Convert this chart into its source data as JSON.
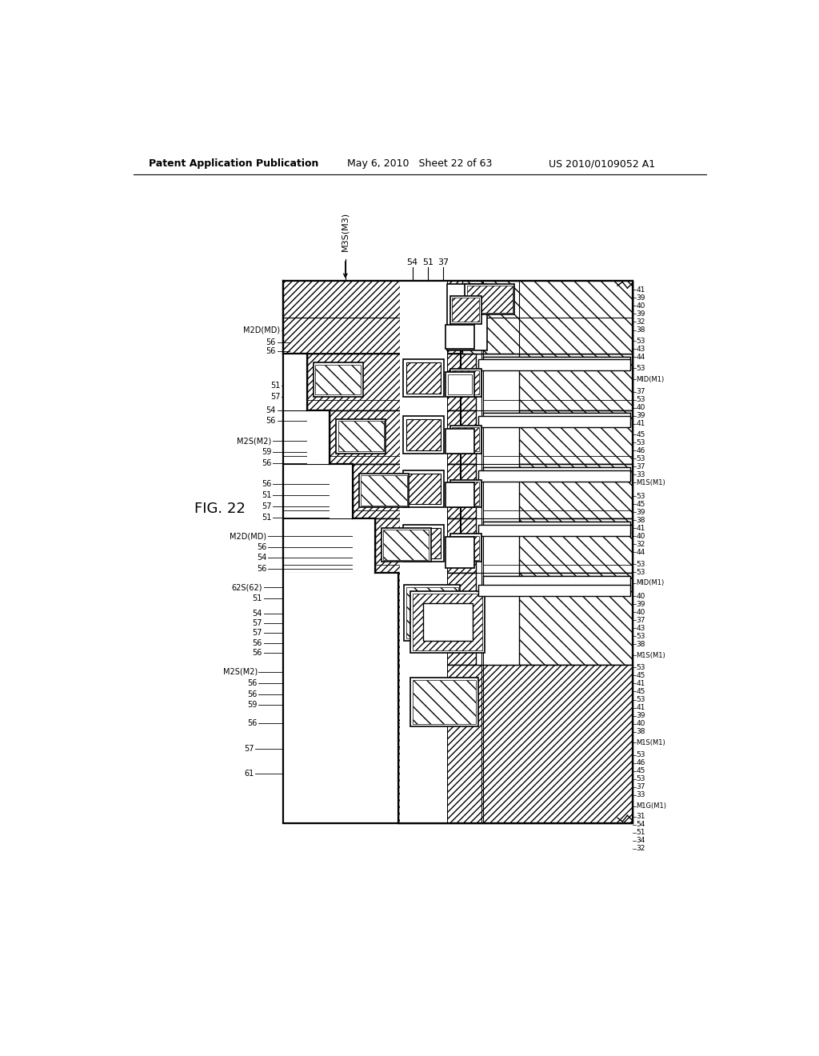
{
  "header_left": "Patent Application Publication",
  "header_center": "May 6, 2010   Sheet 22 of 63",
  "header_right": "US 2010/0109052 A1",
  "fig_label": "FIG. 22",
  "bg_color": "#ffffff"
}
